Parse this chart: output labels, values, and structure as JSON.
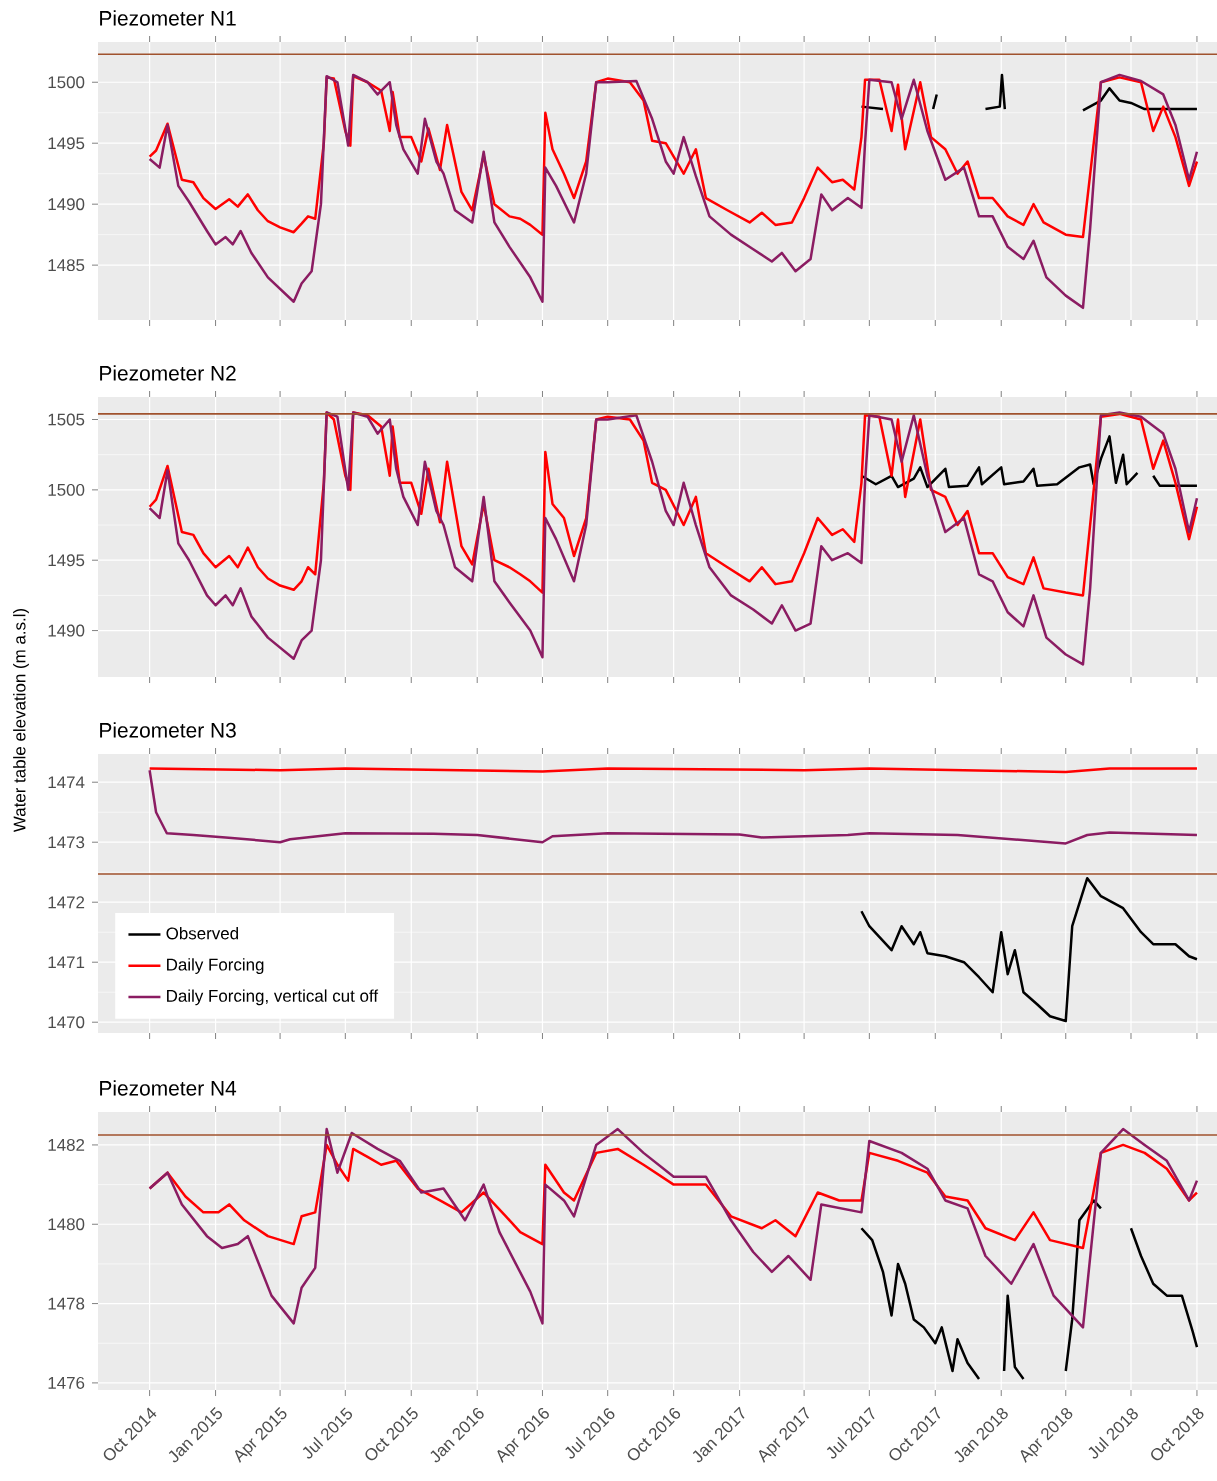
{
  "chart_data": [
    {
      "type": "line",
      "title": "Piezometer N1",
      "xlim": [
        "2014-07-21",
        "2018-10-29"
      ],
      "ylim": [
        1480.5,
        1503.3
      ],
      "yticks": [
        1485,
        1490,
        1495,
        1500
      ],
      "xticks": [
        {
          "value": "2014-10-01",
          "label": null
        },
        {
          "value": "2015-01-01",
          "label": null
        },
        {
          "value": "2015-04-01",
          "label": null
        },
        {
          "value": "2015-07-01",
          "label": null
        },
        {
          "value": "2015-10-01",
          "label": null
        },
        {
          "value": "2016-01-01",
          "label": null
        },
        {
          "value": "2016-04-01",
          "label": null
        },
        {
          "value": "2016-07-01",
          "label": null
        },
        {
          "value": "2016-10-01",
          "label": null
        },
        {
          "value": "2017-01-01",
          "label": null
        },
        {
          "value": "2017-04-01",
          "label": null
        },
        {
          "value": "2017-07-01",
          "label": null
        },
        {
          "value": "2017-10-01",
          "label": null
        },
        {
          "value": "2018-01-01",
          "label": null
        },
        {
          "value": "2018-04-01",
          "label": null
        },
        {
          "value": "2018-07-01",
          "label": null
        },
        {
          "value": "2018-10-01",
          "label": null
        }
      ],
      "grid": true,
      "tick_labels": "y",
      "ref_lines": [
        {
          "axis": "y",
          "value": 1502.3,
          "color": "#a0522d"
        }
      ],
      "series": [
        {
          "color": "#000000",
          "x": [
            "2017-06-20",
            "2017-07-20",
            "2017-07-25",
            "2017-09-28",
            "2017-10-03",
            "2017-10-08",
            "2017-12-10",
            "2017-12-30",
            "2018-01-02",
            "2018-01-06",
            "2018-01-10",
            "2018-04-25",
            "2018-05-20",
            "2018-06-01",
            "2018-06-15",
            "2018-07-01",
            "2018-07-20",
            "2018-09-01",
            "2018-10-01"
          ],
          "values": [
            1498,
            1497.8,
            null,
            1497.8,
            1499,
            null,
            1497.8,
            1498,
            1500.6,
            1497.8,
            null,
            1497.7,
            1498.5,
            1499.5,
            1498.5,
            1498.3,
            1497.8,
            1497.8,
            1497.8
          ]
        },
        {
          "color": "#ff0000",
          "x": [
            "2014-10-01",
            "2014-10-10",
            "2014-10-26",
            "2014-11-15",
            "2014-12-01",
            "2014-12-15",
            "2015-01-01",
            "2015-01-20",
            "2015-02-01",
            "2015-02-15",
            "2015-03-01",
            "2015-03-15",
            "2015-04-01",
            "2015-04-20",
            "2015-05-01",
            "2015-05-10",
            "2015-05-20",
            "2015-06-01",
            "2015-06-05",
            "2015-06-15",
            "2015-07-01",
            "2015-07-08",
            "2015-07-12",
            "2015-08-01",
            "2015-08-20",
            "2015-09-01",
            "2015-09-05",
            "2015-09-15",
            "2015-10-01",
            "2015-10-15",
            "2015-10-25",
            "2015-11-10",
            "2015-11-20",
            "2015-12-10",
            "2015-12-25",
            "2016-01-10",
            "2016-01-25",
            "2016-02-15",
            "2016-03-01",
            "2016-03-15",
            "2016-04-01",
            "2016-04-05",
            "2016-04-15",
            "2016-05-01",
            "2016-05-15",
            "2016-06-01",
            "2016-06-15",
            "2016-07-01",
            "2016-08-01",
            "2016-08-20",
            "2016-09-01",
            "2016-09-20",
            "2016-10-15",
            "2016-11-01",
            "2016-11-15",
            "2016-12-15",
            "2017-01-15",
            "2017-02-01",
            "2017-02-20",
            "2017-03-15",
            "2017-04-01",
            "2017-04-20",
            "2017-05-10",
            "2017-05-25",
            "2017-06-10",
            "2017-06-20",
            "2017-06-25",
            "2017-07-15",
            "2017-08-01",
            "2017-08-10",
            "2017-08-20",
            "2017-09-10",
            "2017-09-25",
            "2017-10-15",
            "2017-11-01",
            "2017-11-15",
            "2017-12-01",
            "2017-12-20",
            "2018-01-10",
            "2018-02-01",
            "2018-02-15",
            "2018-03-01",
            "2018-04-01",
            "2018-04-25",
            "2018-05-10",
            "2018-05-20",
            "2018-06-15",
            "2018-07-15",
            "2018-08-01",
            "2018-08-15",
            "2018-09-01",
            "2018-09-20",
            "2018-10-01"
          ],
          "values": [
            1493.9,
            1494.4,
            1496.6,
            1492,
            1491.8,
            1490.5,
            1489.6,
            1490.4,
            1489.8,
            1490.8,
            1489.5,
            1488.6,
            1488.1,
            1487.7,
            1488.4,
            1489,
            1488.8,
            1495,
            1500.4,
            1500.3,
            1496,
            1494.8,
            1500.5,
            1500,
            1499.3,
            1496,
            1499.2,
            1495.5,
            1495.5,
            1493.5,
            1496.2,
            1492.8,
            1496.5,
            1491,
            1489.5,
            1494,
            1490,
            1489,
            1488.8,
            1488.3,
            1487.5,
            1497.5,
            1494.5,
            1492.5,
            1490.5,
            1493.5,
            1500,
            1500.3,
            1500,
            1498.5,
            1495.2,
            1495,
            1492.5,
            1494.5,
            1490.5,
            1489.5,
            1488.5,
            1489.3,
            1488.3,
            1488.5,
            1490.5,
            1493,
            1491.8,
            1492,
            1491.2,
            1495.5,
            1500.2,
            1500.2,
            1496,
            1499.8,
            1494.5,
            1500,
            1495.5,
            1494.5,
            1492.5,
            1493.5,
            1490.5,
            1490.5,
            1489,
            1488.3,
            1490,
            1488.5,
            1487.5,
            1487.3,
            1495,
            1500,
            1500.4,
            1500,
            1496,
            1498,
            1495.5,
            1491.5,
            1493.5
          ]
        },
        {
          "color": "#8b1c62",
          "x": [
            "2014-10-01",
            "2014-10-15",
            "2014-10-26",
            "2014-11-10",
            "2014-11-25",
            "2014-12-20",
            "2015-01-01",
            "2015-01-15",
            "2015-01-25",
            "2015-02-05",
            "2015-02-20",
            "2015-03-15",
            "2015-04-20",
            "2015-05-01",
            "2015-05-15",
            "2015-05-28",
            "2015-06-05",
            "2015-06-20",
            "2015-07-05",
            "2015-07-12",
            "2015-08-01",
            "2015-08-15",
            "2015-09-01",
            "2015-09-10",
            "2015-09-20",
            "2015-10-10",
            "2015-10-20",
            "2015-11-05",
            "2015-11-15",
            "2015-12-01",
            "2015-12-25",
            "2016-01-10",
            "2016-01-25",
            "2016-02-15",
            "2016-03-15",
            "2016-04-01",
            "2016-04-05",
            "2016-04-20",
            "2016-05-15",
            "2016-06-01",
            "2016-06-15",
            "2016-07-01",
            "2016-08-10",
            "2016-09-01",
            "2016-09-20",
            "2016-10-01",
            "2016-10-15",
            "2016-11-01",
            "2016-11-20",
            "2016-12-20",
            "2017-01-20",
            "2017-02-15",
            "2017-03-01",
            "2017-03-20",
            "2017-04-10",
            "2017-04-25",
            "2017-05-10",
            "2017-06-01",
            "2017-06-20",
            "2017-06-25",
            "2017-07-01",
            "2017-08-01",
            "2017-08-15",
            "2017-09-01",
            "2017-09-20",
            "2017-10-15",
            "2017-11-10",
            "2017-12-01",
            "2017-12-20",
            "2018-01-10",
            "2018-02-01",
            "2018-02-15",
            "2018-03-05",
            "2018-04-01",
            "2018-04-25",
            "2018-05-05",
            "2018-05-20",
            "2018-06-15",
            "2018-07-15",
            "2018-08-15",
            "2018-09-01",
            "2018-09-20",
            "2018-10-01"
          ],
          "values": [
            1493.7,
            1493,
            1496.5,
            1491.5,
            1490.2,
            1487.8,
            1486.7,
            1487.3,
            1486.7,
            1487.8,
            1486,
            1484,
            1482,
            1483.5,
            1484.5,
            1490,
            1500.5,
            1500,
            1494.8,
            1500.6,
            1500,
            1499,
            1500,
            1496.5,
            1494.5,
            1492.5,
            1497,
            1493.5,
            1492.5,
            1489.5,
            1488.5,
            1494.3,
            1488.5,
            1486.5,
            1484,
            1482,
            1493,
            1491.5,
            1488.5,
            1492.5,
            1500,
            1500,
            1500.1,
            1497,
            1493.5,
            1492.5,
            1495.5,
            1492.3,
            1489,
            1487.5,
            1486.3,
            1485.3,
            1486,
            1484.5,
            1485.5,
            1490.8,
            1489.5,
            1490.5,
            1489.7,
            1495,
            1500.2,
            1500,
            1497,
            1500.2,
            1496,
            1492,
            1493,
            1489,
            1489,
            1486.5,
            1485.5,
            1487,
            1484,
            1482.5,
            1481.5,
            1488,
            1500,
            1500.6,
            1500.1,
            1499,
            1496.5,
            1492,
            1494.3
          ]
        }
      ]
    },
    {
      "type": "line",
      "title": "Piezometer N2",
      "xlim": [
        "2014-07-21",
        "2018-10-29"
      ],
      "ylim": [
        1486.7,
        1506.6
      ],
      "yticks": [
        1490,
        1495,
        1500,
        1505
      ],
      "xticks": [
        {
          "value": "2014-10-01",
          "label": null
        },
        {
          "value": "2015-01-01",
          "label": null
        },
        {
          "value": "2015-04-01",
          "label": null
        },
        {
          "value": "2015-07-01",
          "label": null
        },
        {
          "value": "2015-10-01",
          "label": null
        },
        {
          "value": "2016-01-01",
          "label": null
        },
        {
          "value": "2016-04-01",
          "label": null
        },
        {
          "value": "2016-07-01",
          "label": null
        },
        {
          "value": "2016-10-01",
          "label": null
        },
        {
          "value": "2017-01-01",
          "label": null
        },
        {
          "value": "2017-04-01",
          "label": null
        },
        {
          "value": "2017-07-01",
          "label": null
        },
        {
          "value": "2017-10-01",
          "label": null
        },
        {
          "value": "2018-01-01",
          "label": null
        },
        {
          "value": "2018-04-01",
          "label": null
        },
        {
          "value": "2018-07-01",
          "label": null
        },
        {
          "value": "2018-10-01",
          "label": null
        }
      ],
      "grid": true,
      "tick_labels": "y",
      "ref_lines": [
        {
          "axis": "y",
          "value": 1505.4,
          "color": "#a0522d"
        }
      ],
      "series": [
        {
          "color": "#000000",
          "x": [
            "2017-06-20",
            "2017-07-10",
            "2017-08-01",
            "2017-08-10",
            "2017-09-01",
            "2017-09-10",
            "2017-09-20",
            "2017-10-15",
            "2017-10-20",
            "2017-11-15",
            "2017-12-01",
            "2017-12-05",
            "2018-01-01",
            "2018-01-05",
            "2018-02-01",
            "2018-02-15",
            "2018-02-20",
            "2018-03-20",
            "2018-04-20",
            "2018-05-05",
            "2018-05-10",
            "2018-05-20",
            "2018-06-01",
            "2018-06-10",
            "2018-06-20",
            "2018-06-25",
            "2018-07-10",
            "2018-07-20",
            "2018-08-01",
            "2018-08-10",
            "2018-09-10",
            "2018-10-01"
          ],
          "values": [
            1501,
            1500.4,
            1501,
            1500.2,
            1500.8,
            1501.6,
            1500.2,
            1501.5,
            1500.2,
            1500.3,
            1501.6,
            1500.4,
            1501.6,
            1500.4,
            1500.6,
            1501.5,
            1500.3,
            1500.4,
            1501.6,
            1501.8,
            1500.4,
            1502.2,
            1503.8,
            1500.5,
            1502.5,
            1500.4,
            1501.2,
            null,
            1501,
            1500.3,
            1500.3,
            1500.3
          ]
        },
        {
          "color": "#ff0000",
          "x": [
            "2014-10-01",
            "2014-10-10",
            "2014-10-26",
            "2014-11-15",
            "2014-12-01",
            "2014-12-15",
            "2015-01-01",
            "2015-01-20",
            "2015-02-01",
            "2015-02-15",
            "2015-03-01",
            "2015-03-15",
            "2015-04-01",
            "2015-04-20",
            "2015-05-01",
            "2015-05-10",
            "2015-05-20",
            "2015-06-01",
            "2015-06-05",
            "2015-06-15",
            "2015-07-01",
            "2015-07-08",
            "2015-07-12",
            "2015-08-01",
            "2015-08-20",
            "2015-09-01",
            "2015-09-05",
            "2015-09-15",
            "2015-10-01",
            "2015-10-15",
            "2015-10-25",
            "2015-11-10",
            "2015-11-20",
            "2015-12-10",
            "2015-12-25",
            "2016-01-10",
            "2016-01-25",
            "2016-02-15",
            "2016-03-01",
            "2016-03-15",
            "2016-04-01",
            "2016-04-05",
            "2016-04-15",
            "2016-05-01",
            "2016-05-15",
            "2016-06-01",
            "2016-06-15",
            "2016-07-01",
            "2016-08-01",
            "2016-08-20",
            "2016-09-01",
            "2016-09-20",
            "2016-10-15",
            "2016-11-01",
            "2016-11-15",
            "2016-12-15",
            "2017-01-15",
            "2017-02-01",
            "2017-02-20",
            "2017-03-15",
            "2017-04-01",
            "2017-04-20",
            "2017-05-10",
            "2017-05-25",
            "2017-06-10",
            "2017-06-20",
            "2017-06-25",
            "2017-07-15",
            "2017-08-01",
            "2017-08-10",
            "2017-08-20",
            "2017-09-10",
            "2017-09-25",
            "2017-10-15",
            "2017-11-01",
            "2017-11-15",
            "2017-12-01",
            "2017-12-20",
            "2018-01-10",
            "2018-02-01",
            "2018-02-15",
            "2018-03-01",
            "2018-04-01",
            "2018-04-25",
            "2018-05-10",
            "2018-05-20",
            "2018-06-15",
            "2018-07-15",
            "2018-08-01",
            "2018-08-15",
            "2018-09-01",
            "2018-09-20",
            "2018-10-01"
          ],
          "values": [
            1498.8,
            1499.3,
            1501.7,
            1497,
            1496.8,
            1495.5,
            1494.5,
            1495.3,
            1494.5,
            1495.9,
            1494.5,
            1493.7,
            1493.2,
            1492.9,
            1493.5,
            1494.5,
            1494,
            1500.5,
            1505.5,
            1505,
            1501,
            1500,
            1505.5,
            1505.3,
            1504.5,
            1501,
            1504.5,
            1500.5,
            1500.5,
            1498.3,
            1501.5,
            1497.7,
            1502,
            1496,
            1494.7,
            1499,
            1495,
            1494.5,
            1494,
            1493.5,
            1492.7,
            1502.7,
            1499,
            1498,
            1495.3,
            1498,
            1505,
            1505.2,
            1505,
            1503.5,
            1500.5,
            1500,
            1497.5,
            1499.5,
            1495.5,
            1494.5,
            1493.5,
            1494.5,
            1493.3,
            1493.5,
            1495.5,
            1498,
            1496.8,
            1497.2,
            1496.3,
            1500.5,
            1505.3,
            1505.2,
            1501,
            1505,
            1499.5,
            1505,
            1500,
            1499.5,
            1497.5,
            1498.5,
            1495.5,
            1495.5,
            1493.8,
            1493.3,
            1495.2,
            1493,
            1492.7,
            1492.5,
            1500,
            1505.2,
            1505.4,
            1505,
            1501.5,
            1503.5,
            1500.5,
            1496.5,
            1498.8
          ]
        },
        {
          "color": "#8b1c62",
          "x": [
            "2014-10-01",
            "2014-10-15",
            "2014-10-26",
            "2014-11-10",
            "2014-11-25",
            "2014-12-20",
            "2015-01-01",
            "2015-01-15",
            "2015-01-25",
            "2015-02-05",
            "2015-02-20",
            "2015-03-15",
            "2015-04-20",
            "2015-05-01",
            "2015-05-15",
            "2015-05-28",
            "2015-06-05",
            "2015-06-20",
            "2015-07-05",
            "2015-07-12",
            "2015-08-01",
            "2015-08-15",
            "2015-09-01",
            "2015-09-10",
            "2015-09-20",
            "2015-10-10",
            "2015-10-20",
            "2015-11-05",
            "2015-11-15",
            "2015-12-01",
            "2015-12-25",
            "2016-01-10",
            "2016-01-25",
            "2016-02-15",
            "2016-03-15",
            "2016-04-01",
            "2016-04-05",
            "2016-04-20",
            "2016-05-15",
            "2016-06-01",
            "2016-06-15",
            "2016-07-01",
            "2016-08-10",
            "2016-09-01",
            "2016-09-20",
            "2016-10-01",
            "2016-10-15",
            "2016-11-01",
            "2016-11-20",
            "2016-12-20",
            "2017-01-20",
            "2017-02-15",
            "2017-03-01",
            "2017-03-20",
            "2017-04-10",
            "2017-04-25",
            "2017-05-10",
            "2017-06-01",
            "2017-06-20",
            "2017-06-25",
            "2017-07-01",
            "2017-08-01",
            "2017-08-15",
            "2017-09-01",
            "2017-09-20",
            "2017-10-15",
            "2017-11-10",
            "2017-12-01",
            "2017-12-20",
            "2018-01-10",
            "2018-02-01",
            "2018-02-15",
            "2018-03-05",
            "2018-04-01",
            "2018-04-25",
            "2018-05-05",
            "2018-05-20",
            "2018-06-15",
            "2018-07-15",
            "2018-08-15",
            "2018-09-01",
            "2018-09-20",
            "2018-10-01"
          ],
          "values": [
            1498.7,
            1498,
            1501.4,
            1496.2,
            1495,
            1492.5,
            1491.8,
            1492.5,
            1491.8,
            1493,
            1491,
            1489.5,
            1488,
            1489.3,
            1490,
            1495,
            1505.5,
            1505.2,
            1500,
            1505.5,
            1505.2,
            1504,
            1505,
            1501.5,
            1499.5,
            1497.5,
            1502,
            1498.5,
            1497.5,
            1494.5,
            1493.5,
            1499.5,
            1493.5,
            1492,
            1490,
            1488.1,
            1498,
            1496.5,
            1493.5,
            1497.5,
            1505,
            1505,
            1505.3,
            1502,
            1498.5,
            1497.5,
            1500.5,
            1497.5,
            1494.5,
            1492.5,
            1491.5,
            1490.5,
            1491.8,
            1490,
            1490.5,
            1496,
            1495,
            1495.5,
            1494.8,
            1500.5,
            1505.3,
            1505,
            1502,
            1505.3,
            1501,
            1497,
            1498,
            1494,
            1493.5,
            1491.3,
            1490.3,
            1492.5,
            1489.5,
            1488.3,
            1487.6,
            1493,
            1505.3,
            1505.5,
            1505.2,
            1504,
            1501.5,
            1497,
            1499.4
          ]
        }
      ]
    },
    {
      "type": "line",
      "title": "Piezometer N3",
      "ylabel": "Water table elevation (m a.s.l)",
      "xlim": [
        "2014-07-21",
        "2018-10-29"
      ],
      "ylim": [
        1469.82,
        1474.47
      ],
      "yticks": [
        1470,
        1471,
        1472,
        1473,
        1474
      ],
      "xticks": [
        {
          "value": "2014-10-01",
          "label": null
        },
        {
          "value": "2015-01-01",
          "label": null
        },
        {
          "value": "2015-04-01",
          "label": null
        },
        {
          "value": "2015-07-01",
          "label": null
        },
        {
          "value": "2015-10-01",
          "label": null
        },
        {
          "value": "2016-01-01",
          "label": null
        },
        {
          "value": "2016-04-01",
          "label": null
        },
        {
          "value": "2016-07-01",
          "label": null
        },
        {
          "value": "2016-10-01",
          "label": null
        },
        {
          "value": "2017-01-01",
          "label": null
        },
        {
          "value": "2017-04-01",
          "label": null
        },
        {
          "value": "2017-07-01",
          "label": null
        },
        {
          "value": "2017-10-01",
          "label": null
        },
        {
          "value": "2018-01-01",
          "label": null
        },
        {
          "value": "2018-04-01",
          "label": null
        },
        {
          "value": "2018-07-01",
          "label": null
        },
        {
          "value": "2018-10-01",
          "label": null
        }
      ],
      "grid": true,
      "tick_labels": "y",
      "legend": "bottom left",
      "ref_lines": [
        {
          "axis": "y",
          "value": 1472.47,
          "color": "#a0522d"
        }
      ],
      "series": [
        {
          "name": "Observed",
          "color": "#000000",
          "x": [
            "2017-06-20",
            "2017-07-01",
            "2017-08-01",
            "2017-08-15",
            "2017-09-01",
            "2017-09-10",
            "2017-09-20",
            "2017-10-15",
            "2017-11-10",
            "2017-12-01",
            "2017-12-20",
            "2018-01-01",
            "2018-01-10",
            "2018-01-20",
            "2018-02-01",
            "2018-02-20",
            "2018-03-10",
            "2018-04-01",
            "2018-04-10",
            "2018-05-01",
            "2018-05-20",
            "2018-06-20",
            "2018-07-15",
            "2018-08-01",
            "2018-09-01",
            "2018-09-20",
            "2018-10-01"
          ],
          "values": [
            1471.85,
            1471.6,
            1471.2,
            1471.6,
            1471.3,
            1471.5,
            1471.15,
            1471.1,
            1471.0,
            1470.75,
            1470.5,
            1471.5,
            1470.8,
            1471.2,
            1470.5,
            1470.3,
            1470.1,
            1470.02,
            1471.6,
            1472.4,
            1472.1,
            1471.9,
            1471.5,
            1471.3,
            1471.3,
            1471.1,
            1471.05
          ]
        },
        {
          "name": "Daily Forcing",
          "color": "#ff0000",
          "x": [
            "2014-10-01",
            "2015-04-01",
            "2015-07-01",
            "2016-04-01",
            "2016-07-01",
            "2017-04-01",
            "2017-07-01",
            "2018-04-01",
            "2018-06-01",
            "2018-10-01"
          ],
          "values": [
            1474.23,
            1474.2,
            1474.23,
            1474.18,
            1474.23,
            1474.2,
            1474.23,
            1474.17,
            1474.23,
            1474.23
          ]
        },
        {
          "name": "Daily Forcing, vertical cut off",
          "color": "#8b1c62",
          "x": [
            "2014-10-01",
            "2014-10-10",
            "2014-10-25",
            "2014-12-01",
            "2015-01-15",
            "2015-04-01",
            "2015-04-15",
            "2015-07-01",
            "2015-11-01",
            "2016-01-01",
            "2016-04-01",
            "2016-04-15",
            "2016-07-01",
            "2017-01-01",
            "2017-02-01",
            "2017-06-01",
            "2017-07-01",
            "2017-11-01",
            "2018-04-01",
            "2018-05-01",
            "2018-06-01",
            "2018-10-01"
          ],
          "values": [
            1474.2,
            1473.5,
            1473.15,
            1473.12,
            1473.08,
            1473.0,
            1473.05,
            1473.15,
            1473.14,
            1473.12,
            1473.0,
            1473.1,
            1473.15,
            1473.13,
            1473.08,
            1473.12,
            1473.15,
            1473.12,
            1472.98,
            1473.12,
            1473.16,
            1473.12
          ]
        }
      ]
    },
    {
      "type": "line",
      "title": "Piezometer N4",
      "xlim": [
        "2014-07-21",
        "2018-10-29"
      ],
      "ylim": [
        1475.82,
        1482.83
      ],
      "yticks": [
        1476,
        1478,
        1480,
        1482
      ],
      "xticks": [
        {
          "value": "2014-10-01",
          "label": "Oct 2014"
        },
        {
          "value": "2015-01-01",
          "label": "Jan 2015"
        },
        {
          "value": "2015-04-01",
          "label": "Apr 2015"
        },
        {
          "value": "2015-07-01",
          "label": "Jul 2015"
        },
        {
          "value": "2015-10-01",
          "label": "Oct 2015"
        },
        {
          "value": "2016-01-01",
          "label": "Jan 2016"
        },
        {
          "value": "2016-04-01",
          "label": "Apr 2016"
        },
        {
          "value": "2016-07-01",
          "label": "Jul 2016"
        },
        {
          "value": "2016-10-01",
          "label": "Oct 2016"
        },
        {
          "value": "2017-01-01",
          "label": "Jan 2017"
        },
        {
          "value": "2017-04-01",
          "label": "Apr 2017"
        },
        {
          "value": "2017-07-01",
          "label": "Jul 2017"
        },
        {
          "value": "2017-10-01",
          "label": "Oct 2017"
        },
        {
          "value": "2018-01-01",
          "label": "Jan 2018"
        },
        {
          "value": "2018-04-01",
          "label": "Apr 2018"
        },
        {
          "value": "2018-07-01",
          "label": "Jul 2018"
        },
        {
          "value": "2018-10-01",
          "label": "Oct 2018"
        }
      ],
      "grid": true,
      "ref_lines": [
        {
          "axis": "y",
          "value": 1482.25,
          "color": "#a0522d"
        }
      ],
      "series": [
        {
          "color": "#000000",
          "x": [
            "2017-06-20",
            "2017-07-05",
            "2017-07-20",
            "2017-08-01",
            "2017-08-10",
            "2017-08-20",
            "2017-09-01",
            "2017-09-15",
            "2017-10-01",
            "2017-10-10",
            "2017-10-25",
            "2017-11-01",
            "2017-11-15",
            "2017-12-01",
            "2017-12-15",
            "2018-01-05",
            "2018-01-10",
            "2018-01-20",
            "2018-02-01",
            "2018-02-15",
            "2018-04-01",
            "2018-04-10",
            "2018-04-20",
            "2018-05-10",
            "2018-05-20",
            "2018-06-10",
            "2018-07-01",
            "2018-07-15",
            "2018-08-01",
            "2018-08-20",
            "2018-09-10",
            "2018-09-25",
            "2018-10-01"
          ],
          "values": [
            1479.9,
            1479.6,
            1478.8,
            1477.7,
            1479,
            1478.5,
            1477.6,
            1477.4,
            1477,
            1477.4,
            1476.3,
            1477.1,
            1476.5,
            1476.1,
            null,
            1476.3,
            1478.2,
            1476.4,
            1476.1,
            null,
            1476.3,
            1477.6,
            1480.1,
            1480.6,
            1480.4,
            null,
            1479.9,
            1479.2,
            1478.5,
            1478.2,
            1478.2,
            1477.3,
            1476.9
          ]
        },
        {
          "color": "#ff0000",
          "x": [
            "2014-10-01",
            "2014-10-26",
            "2014-11-20",
            "2014-12-15",
            "2015-01-05",
            "2015-01-20",
            "2015-02-10",
            "2015-03-15",
            "2015-04-20",
            "2015-05-01",
            "2015-05-20",
            "2015-06-05",
            "2015-06-20",
            "2015-07-05",
            "2015-07-12",
            "2015-08-01",
            "2015-08-20",
            "2015-09-10",
            "2015-10-10",
            "2015-11-10",
            "2015-12-10",
            "2016-01-10",
            "2016-02-10",
            "2016-03-01",
            "2016-04-01",
            "2016-04-05",
            "2016-05-01",
            "2016-05-15",
            "2016-06-15",
            "2016-07-15",
            "2016-08-20",
            "2016-10-01",
            "2016-11-15",
            "2016-12-20",
            "2017-02-01",
            "2017-02-20",
            "2017-03-20",
            "2017-04-20",
            "2017-05-20",
            "2017-06-20",
            "2017-07-01",
            "2017-08-10",
            "2017-09-20",
            "2017-10-15",
            "2017-11-15",
            "2017-12-10",
            "2018-01-20",
            "2018-02-15",
            "2018-03-10",
            "2018-04-25",
            "2018-05-20",
            "2018-06-20",
            "2018-07-20",
            "2018-08-20",
            "2018-09-20",
            "2018-10-01"
          ],
          "values": [
            1480.9,
            1481.3,
            1480.7,
            1480.3,
            1480.3,
            1480.5,
            1480.1,
            1479.7,
            1479.5,
            1480.2,
            1480.3,
            1482,
            1481.5,
            1481.1,
            1481.9,
            1481.7,
            1481.5,
            1481.6,
            1480.9,
            1480.6,
            1480.3,
            1480.8,
            1480.2,
            1479.8,
            1479.5,
            1481.5,
            1480.8,
            1480.6,
            1481.8,
            1481.9,
            1481.5,
            1481,
            1481,
            1480.2,
            1479.9,
            1480.1,
            1479.7,
            1480.8,
            1480.6,
            1480.6,
            1481.8,
            1481.6,
            1481.3,
            1480.7,
            1480.6,
            1479.9,
            1479.6,
            1480.3,
            1479.6,
            1479.4,
            1481.8,
            1482,
            1481.8,
            1481.4,
            1480.6,
            1480.8
          ]
        },
        {
          "color": "#8b1c62",
          "x": [
            "2014-10-01",
            "2014-10-26",
            "2014-11-15",
            "2014-12-20",
            "2015-01-10",
            "2015-02-01",
            "2015-02-15",
            "2015-03-20",
            "2015-04-20",
            "2015-05-01",
            "2015-05-20",
            "2015-06-05",
            "2015-06-20",
            "2015-07-10",
            "2015-08-15",
            "2015-09-15",
            "2015-10-15",
            "2015-11-15",
            "2015-12-15",
            "2016-01-10",
            "2016-02-01",
            "2016-03-15",
            "2016-04-01",
            "2016-04-05",
            "2016-05-01",
            "2016-05-15",
            "2016-06-15",
            "2016-07-15",
            "2016-08-20",
            "2016-10-01",
            "2016-11-15",
            "2016-12-20",
            "2017-01-20",
            "2017-02-15",
            "2017-03-10",
            "2017-04-10",
            "2017-04-25",
            "2017-06-20",
            "2017-07-01",
            "2017-08-15",
            "2017-09-20",
            "2017-10-15",
            "2017-11-15",
            "2017-12-10",
            "2018-01-15",
            "2018-02-15",
            "2018-03-15",
            "2018-04-25",
            "2018-05-20",
            "2018-06-20",
            "2018-07-20",
            "2018-08-20",
            "2018-09-20",
            "2018-10-01"
          ],
          "values": [
            1480.9,
            1481.3,
            1480.5,
            1479.7,
            1479.4,
            1479.5,
            1479.7,
            1478.2,
            1477.5,
            1478.4,
            1478.9,
            1482.4,
            1481.3,
            1482.3,
            1481.9,
            1481.6,
            1480.8,
            1480.9,
            1480.1,
            1481,
            1479.8,
            1478.3,
            1477.5,
            1481,
            1480.6,
            1480.2,
            1482,
            1482.4,
            1481.8,
            1481.2,
            1481.2,
            1480.1,
            1479.3,
            1478.8,
            1479.2,
            1478.6,
            1480.5,
            1480.3,
            1482.1,
            1481.8,
            1481.4,
            1480.6,
            1480.4,
            1479.2,
            1478.5,
            1479.5,
            1478.2,
            1477.4,
            1481.8,
            1482.4,
            1482,
            1481.6,
            1480.6,
            1481.1
          ]
        }
      ]
    }
  ]
}
